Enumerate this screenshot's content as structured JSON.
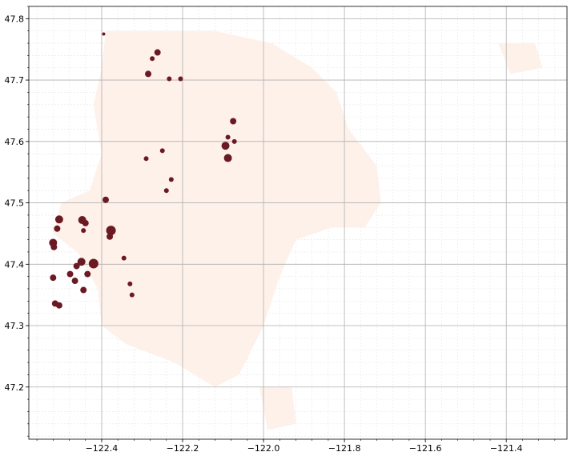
{
  "chart_data": {
    "type": "scatter",
    "title": "",
    "xlabel": "",
    "ylabel": "",
    "xlim": [
      -122.58,
      -121.25
    ],
    "ylim": [
      47.115,
      47.82
    ],
    "grid": {
      "major": true,
      "minor": true
    },
    "x_ticks": [
      {
        "value": -122.4,
        "label": "−122.4"
      },
      {
        "value": -122.2,
        "label": "−122.2"
      },
      {
        "value": -122.0,
        "label": "−122.0"
      },
      {
        "value": -121.8,
        "label": "−121.8"
      },
      {
        "value": -121.6,
        "label": "−121.6"
      },
      {
        "value": -121.4,
        "label": "−121.4"
      }
    ],
    "y_ticks": [
      {
        "value": 47.2,
        "label": "47.2"
      },
      {
        "value": 47.3,
        "label": "47.3"
      },
      {
        "value": 47.4,
        "label": "47.4"
      },
      {
        "value": 47.5,
        "label": "47.5"
      },
      {
        "value": 47.6,
        "label": "47.6"
      },
      {
        "value": 47.7,
        "label": "47.7"
      },
      {
        "value": 47.8,
        "label": "47.8"
      }
    ],
    "colors": {
      "background_region": "#fdf1ea",
      "highlight": "#6b1a24",
      "grid_major": "#b0b0b0",
      "grid_minor": "#e6e6e6"
    },
    "background_regions": [
      [
        [
          -122.39,
          47.78
        ],
        [
          -122.12,
          47.78
        ],
        [
          -121.98,
          47.76
        ],
        [
          -121.88,
          47.72
        ],
        [
          -121.82,
          47.68
        ],
        [
          -121.79,
          47.62
        ],
        [
          -121.72,
          47.56
        ],
        [
          -121.71,
          47.5
        ],
        [
          -121.75,
          47.46
        ],
        [
          -121.83,
          47.46
        ],
        [
          -121.92,
          47.44
        ],
        [
          -121.96,
          47.38
        ],
        [
          -122.0,
          47.3
        ],
        [
          -122.06,
          47.22
        ],
        [
          -122.12,
          47.2
        ],
        [
          -122.22,
          47.24
        ],
        [
          -122.34,
          47.27
        ],
        [
          -122.4,
          47.3
        ],
        [
          -122.41,
          47.36
        ],
        [
          -122.46,
          47.42
        ],
        [
          -122.52,
          47.45
        ],
        [
          -122.5,
          47.5
        ],
        [
          -122.43,
          47.52
        ],
        [
          -122.4,
          47.58
        ],
        [
          -122.42,
          47.66
        ],
        [
          -122.4,
          47.72
        ]
      ],
      [
        [
          -121.42,
          47.76
        ],
        [
          -121.33,
          47.76
        ],
        [
          -121.31,
          47.72
        ],
        [
          -121.39,
          47.71
        ]
      ],
      [
        [
          -122.01,
          47.2
        ],
        [
          -121.93,
          47.2
        ],
        [
          -121.92,
          47.14
        ],
        [
          -121.99,
          47.13
        ]
      ]
    ],
    "points": [
      {
        "x": -122.505,
        "y": 47.473,
        "size": 5
      },
      {
        "x": -122.51,
        "y": 47.458,
        "size": 4
      },
      {
        "x": -122.52,
        "y": 47.435,
        "size": 5
      },
      {
        "x": -122.518,
        "y": 47.428,
        "size": 4
      },
      {
        "x": -122.52,
        "y": 47.378,
        "size": 4
      },
      {
        "x": -122.515,
        "y": 47.336,
        "size": 4
      },
      {
        "x": -122.505,
        "y": 47.333,
        "size": 4
      },
      {
        "x": -122.448,
        "y": 47.472,
        "size": 5
      },
      {
        "x": -122.44,
        "y": 47.467,
        "size": 4
      },
      {
        "x": -122.445,
        "y": 47.455,
        "size": 3
      },
      {
        "x": -122.45,
        "y": 47.404,
        "size": 5
      },
      {
        "x": -122.462,
        "y": 47.397,
        "size": 4
      },
      {
        "x": -122.42,
        "y": 47.401,
        "size": 6
      },
      {
        "x": -122.478,
        "y": 47.384,
        "size": 4
      },
      {
        "x": -122.435,
        "y": 47.384,
        "size": 4
      },
      {
        "x": -122.466,
        "y": 47.373,
        "size": 4
      },
      {
        "x": -122.445,
        "y": 47.358,
        "size": 4
      },
      {
        "x": -122.39,
        "y": 47.505,
        "size": 4
      },
      {
        "x": -122.377,
        "y": 47.455,
        "size": 6
      },
      {
        "x": -122.38,
        "y": 47.445,
        "size": 4
      },
      {
        "x": -122.345,
        "y": 47.41,
        "size": 3
      },
      {
        "x": -122.33,
        "y": 47.368,
        "size": 3
      },
      {
        "x": -122.325,
        "y": 47.35,
        "size": 3
      },
      {
        "x": -122.395,
        "y": 47.775,
        "size": 2
      },
      {
        "x": -122.262,
        "y": 47.745,
        "size": 4
      },
      {
        "x": -122.285,
        "y": 47.71,
        "size": 4
      },
      {
        "x": -122.275,
        "y": 47.735,
        "size": 3
      },
      {
        "x": -122.233,
        "y": 47.702,
        "size": 3
      },
      {
        "x": -122.205,
        "y": 47.702,
        "size": 3
      },
      {
        "x": -122.29,
        "y": 47.572,
        "size": 3
      },
      {
        "x": -122.25,
        "y": 47.585,
        "size": 3
      },
      {
        "x": -122.24,
        "y": 47.52,
        "size": 3
      },
      {
        "x": -122.228,
        "y": 47.538,
        "size": 3
      },
      {
        "x": -122.094,
        "y": 47.593,
        "size": 5
      },
      {
        "x": -122.075,
        "y": 47.633,
        "size": 4
      },
      {
        "x": -122.088,
        "y": 47.607,
        "size": 3
      },
      {
        "x": -122.088,
        "y": 47.573,
        "size": 5
      },
      {
        "x": -122.072,
        "y": 47.6,
        "size": 3
      }
    ]
  }
}
